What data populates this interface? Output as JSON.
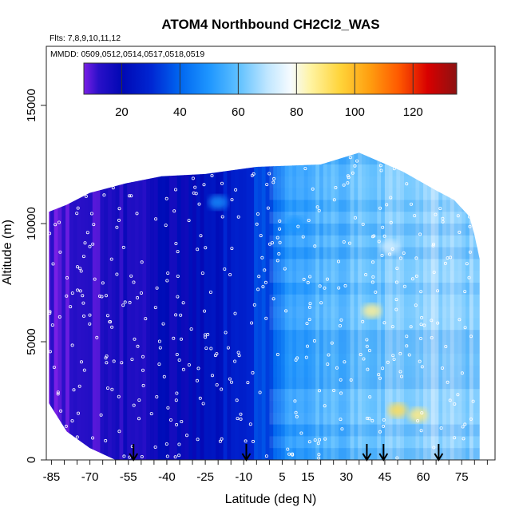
{
  "chart_data": {
    "type": "heatmap",
    "title": "ATOM4 Northbound CH2Cl2_WAS",
    "subtitle_flights": "Flts: 7,8,9,10,11,12",
    "subtitle_dates": "MMDD: 0509,0512,0514,0517,0518,0519",
    "xlabel": "Latitude (deg N)",
    "ylabel": "Altitude (m)",
    "xlim": [
      -87,
      88
    ],
    "ylim": [
      0,
      17500
    ],
    "x_tick_labels": [
      "-85",
      "-70",
      "-55",
      "-40",
      "-25",
      "-10",
      "5",
      "15",
      "30",
      "45",
      "60",
      "75"
    ],
    "x_tick_values": [
      -85,
      -70,
      -55,
      -40,
      -25,
      -10,
      5,
      15,
      30,
      45,
      60,
      75
    ],
    "y_tick_labels": [
      "0",
      "5000",
      "10000",
      "15000"
    ],
    "y_tick_values": [
      0,
      5000,
      10000,
      15000
    ],
    "colorbar": {
      "range": [
        7,
        135
      ],
      "tick_labels": [
        "20",
        "40",
        "60",
        "80",
        "100",
        "120"
      ],
      "tick_values": [
        20,
        40,
        60,
        80,
        100,
        120
      ]
    },
    "colorscale": [
      {
        "v": 7,
        "c": "#7a1fe6"
      },
      {
        "v": 12,
        "c": "#2a10c8"
      },
      {
        "v": 20,
        "c": "#0008b4"
      },
      {
        "v": 30,
        "c": "#0026d2"
      },
      {
        "v": 40,
        "c": "#0066f0"
      },
      {
        "v": 50,
        "c": "#1e96ff"
      },
      {
        "v": 60,
        "c": "#5ec0ff"
      },
      {
        "v": 70,
        "c": "#bfe6ff"
      },
      {
        "v": 78,
        "c": "#f6fbff"
      },
      {
        "v": 85,
        "c": "#fff3a0"
      },
      {
        "v": 95,
        "c": "#ffd43a"
      },
      {
        "v": 105,
        "c": "#ff9f10"
      },
      {
        "v": 115,
        "c": "#ff5a00"
      },
      {
        "v": 125,
        "c": "#d80000"
      },
      {
        "v": 135,
        "c": "#8c1212"
      }
    ],
    "regional_profile": [
      {
        "lat": -87,
        "value": 9
      },
      {
        "lat": -60,
        "value": 14
      },
      {
        "lat": -40,
        "value": 19
      },
      {
        "lat": -25,
        "value": 23
      },
      {
        "lat": -10,
        "value": 30
      },
      {
        "lat": 0,
        "value": 38
      },
      {
        "lat": 5,
        "value": 48
      },
      {
        "lat": 15,
        "value": 54
      },
      {
        "lat": 30,
        "value": 58
      },
      {
        "lat": 45,
        "value": 62
      },
      {
        "lat": 60,
        "value": 66
      },
      {
        "lat": 75,
        "value": 64
      },
      {
        "lat": 88,
        "value": 60
      }
    ],
    "coverage_top": [
      {
        "lat": -86,
        "alt": 10500
      },
      {
        "lat": -79,
        "alt": 10800
      },
      {
        "lat": -70,
        "alt": 11300
      },
      {
        "lat": -56,
        "alt": 11700
      },
      {
        "lat": -42,
        "alt": 12000
      },
      {
        "lat": -25,
        "alt": 12100
      },
      {
        "lat": -5,
        "alt": 12400
      },
      {
        "lat": 20,
        "alt": 12500
      },
      {
        "lat": 35,
        "alt": 13000
      },
      {
        "lat": 52,
        "alt": 12200
      },
      {
        "lat": 65,
        "alt": 11400
      },
      {
        "lat": 72,
        "alt": 11000
      },
      {
        "lat": 78,
        "alt": 10300
      },
      {
        "lat": 80,
        "alt": 9500
      },
      {
        "lat": 82,
        "alt": 8500
      }
    ],
    "coverage_bottom": [
      {
        "lat": -86,
        "alt": 2400
      },
      {
        "lat": -79,
        "alt": 1200
      },
      {
        "lat": -70,
        "alt": 500
      },
      {
        "lat": -60,
        "alt": 0
      },
      {
        "lat": 82,
        "alt": 0
      }
    ],
    "features": [
      {
        "lat": 50,
        "alt": 2100,
        "value": 92
      },
      {
        "lat": 40,
        "alt": 6300,
        "value": 86
      },
      {
        "lat": 58,
        "alt": 1900,
        "value": 88
      },
      {
        "lat": 47,
        "alt": 9000,
        "value": 72
      },
      {
        "lat": -20,
        "alt": 10900,
        "value": 48
      },
      {
        "lat": 10,
        "alt": 10000,
        "value": 50
      }
    ],
    "arrows_lat": [
      -53,
      -9,
      38,
      44.5,
      66
    ]
  }
}
